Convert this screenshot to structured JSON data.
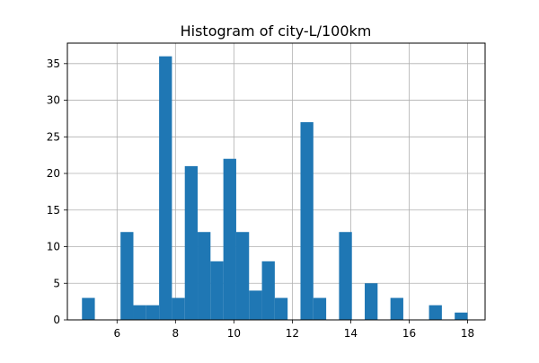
{
  "chart_data": {
    "type": "bar",
    "title": "Histogram of city-L/100km",
    "xlabel": "",
    "ylabel": "",
    "xlim": [
      4.3,
      18.6
    ],
    "ylim": [
      0,
      37.8
    ],
    "bin_width": 0.44,
    "x_ticks": [
      6,
      8,
      10,
      12,
      14,
      16,
      18
    ],
    "y_ticks": [
      0,
      5,
      10,
      15,
      20,
      25,
      30,
      35
    ],
    "grid": true,
    "bar_color": "#1f77b4",
    "bins": [
      {
        "start": 4.8,
        "count": 3
      },
      {
        "start": 5.24,
        "count": 0
      },
      {
        "start": 5.68,
        "count": 0
      },
      {
        "start": 6.12,
        "count": 12
      },
      {
        "start": 6.56,
        "count": 2
      },
      {
        "start": 7.0,
        "count": 2
      },
      {
        "start": 7.44,
        "count": 36
      },
      {
        "start": 7.88,
        "count": 3
      },
      {
        "start": 8.32,
        "count": 21
      },
      {
        "start": 8.76,
        "count": 12
      },
      {
        "start": 9.2,
        "count": 8
      },
      {
        "start": 9.64,
        "count": 22
      },
      {
        "start": 10.08,
        "count": 12
      },
      {
        "start": 10.52,
        "count": 4
      },
      {
        "start": 10.96,
        "count": 8
      },
      {
        "start": 11.4,
        "count": 3
      },
      {
        "start": 11.84,
        "count": 0
      },
      {
        "start": 12.28,
        "count": 27
      },
      {
        "start": 12.72,
        "count": 3
      },
      {
        "start": 13.16,
        "count": 0
      },
      {
        "start": 13.6,
        "count": 12
      },
      {
        "start": 14.04,
        "count": 0
      },
      {
        "start": 14.48,
        "count": 5
      },
      {
        "start": 14.92,
        "count": 0
      },
      {
        "start": 15.36,
        "count": 3
      },
      {
        "start": 15.8,
        "count": 0
      },
      {
        "start": 16.24,
        "count": 0
      },
      {
        "start": 16.68,
        "count": 2
      },
      {
        "start": 17.12,
        "count": 0
      },
      {
        "start": 17.56,
        "count": 1
      }
    ]
  }
}
